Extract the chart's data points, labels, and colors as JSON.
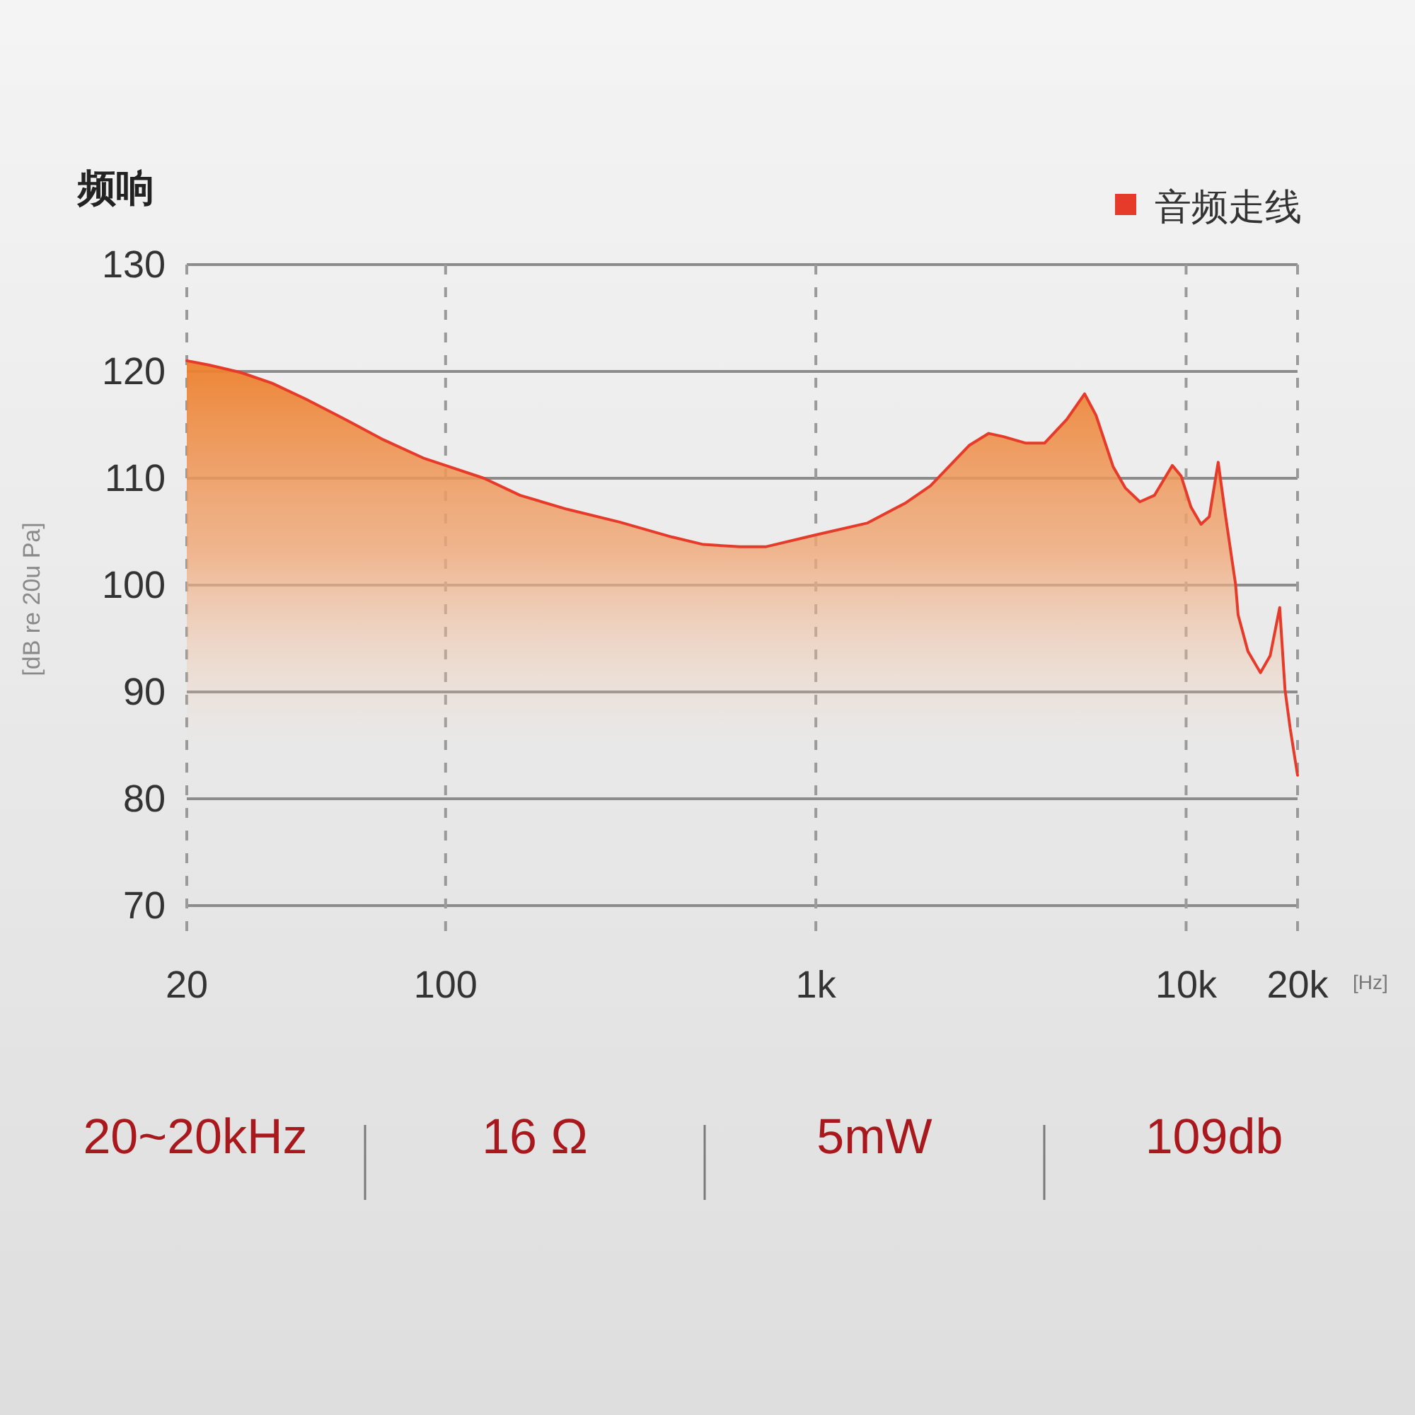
{
  "chart_data": {
    "type": "area",
    "title": "频响",
    "xlabel": "[Hz]",
    "ylabel": "[dB re 20u Pa]",
    "log": "x",
    "xlim": [
      20,
      20000
    ],
    "xticks": [
      20,
      100,
      {
        "value": 1000,
        "label": "1k"
      },
      {
        "value": 10000,
        "label": "10k"
      },
      {
        "value": 20000,
        "label": "20k"
      }
    ],
    "ylim": [
      70,
      130
    ],
    "yticks": [
      70,
      80,
      90,
      100,
      110,
      120,
      130
    ],
    "grid": true,
    "legend": "top right",
    "x": [
      20,
      23,
      28,
      34,
      42,
      53,
      68,
      87,
      100,
      127,
      159,
      213,
      295,
      409,
      497,
      624,
      735,
      1000,
      1375,
      1750,
      2040,
      2600,
      2930,
      3210,
      3680,
      4150,
      4760,
      5320,
      5710,
      6350,
      6850,
      7500,
      8210,
      9180,
      9700,
      10310,
      10970,
      11550,
      12210,
      12790,
      13600,
      13820,
      14690,
      15880,
      16870,
      17900,
      18500,
      19100,
      20000
    ],
    "series": [
      {
        "name": "音频走线",
        "color": "#e63a2a",
        "values": [
          121.0,
          120.6,
          119.9,
          118.9,
          117.4,
          115.6,
          113.6,
          111.9,
          111.2,
          110.0,
          108.4,
          107.1,
          105.9,
          104.5,
          103.8,
          103.6,
          103.6,
          104.7,
          105.8,
          107.7,
          109.3,
          113.1,
          114.2,
          113.9,
          113.3,
          113.3,
          115.5,
          117.9,
          115.9,
          111.1,
          109.1,
          107.8,
          108.4,
          111.2,
          110.2,
          107.3,
          105.7,
          106.4,
          111.5,
          106.4,
          100.1,
          97.2,
          93.8,
          91.8,
          93.4,
          97.9,
          90.2,
          86.6,
          82.2
        ]
      }
    ],
    "annotations": [
      "20~20kHz",
      "16 Ω",
      "5mW",
      "109db"
    ]
  }
}
